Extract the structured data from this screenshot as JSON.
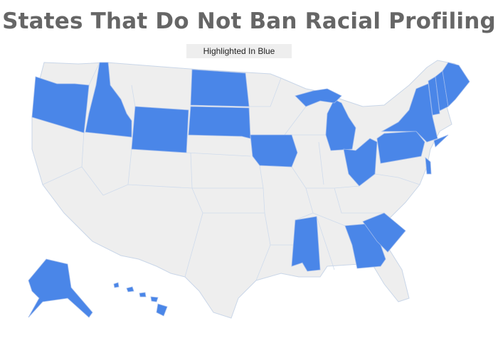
{
  "title": "States That Do Not Ban Racial Profiling",
  "subtitle": "Highlighted In Blue",
  "colors": {
    "highlight": "#4a86e8",
    "base": "#eeeeee",
    "border": "#c9d6e8"
  },
  "highlighted_states": [
    "Oregon",
    "Idaho",
    "Wyoming",
    "North Dakota",
    "South Dakota",
    "Iowa",
    "Michigan",
    "Ohio",
    "Pennsylvania",
    "New York",
    "Vermont",
    "New Hampshire",
    "Maine",
    "Delaware",
    "Mississippi",
    "Georgia",
    "South Carolina",
    "Alaska",
    "Hawaii"
  ]
}
